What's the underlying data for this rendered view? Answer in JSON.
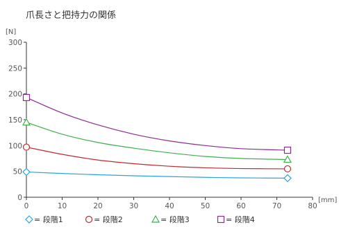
{
  "chart_data": {
    "type": "line",
    "title": "爪長さと把持力の関係",
    "ylabel": "[N]",
    "xlabel": "[mm]",
    "xlim": [
      0,
      80
    ],
    "ylim": [
      0,
      300
    ],
    "xticks": [
      0,
      10,
      20,
      30,
      40,
      50,
      60,
      70,
      80
    ],
    "yticks": [
      0,
      50,
      100,
      150,
      200,
      250,
      300
    ],
    "grid": false,
    "legend_position": "bottom",
    "series": [
      {
        "name": "段階1",
        "color": "#29a3e0",
        "marker": "diamond",
        "x": [
          0,
          10,
          20,
          30,
          40,
          50,
          60,
          73
        ],
        "y": [
          49,
          46,
          43.5,
          41.5,
          40,
          38.5,
          37.5,
          37
        ]
      },
      {
        "name": "段階2",
        "color": "#c1272d",
        "marker": "circle",
        "x": [
          0,
          10,
          20,
          30,
          40,
          50,
          60,
          73
        ],
        "y": [
          97,
          83,
          72,
          65,
          60,
          57,
          55.5,
          55
        ]
      },
      {
        "name": "段階3",
        "color": "#3db14a",
        "marker": "triangle",
        "x": [
          0,
          10,
          20,
          30,
          40,
          50,
          60,
          73
        ],
        "y": [
          145,
          122,
          106,
          95,
          86,
          79,
          75,
          73
        ]
      },
      {
        "name": "段階4",
        "color": "#8b2a8f",
        "marker": "square",
        "x": [
          0,
          10,
          20,
          30,
          40,
          50,
          60,
          73
        ],
        "y": [
          193,
          163,
          140,
          122,
          109,
          100,
          94,
          91
        ]
      }
    ]
  },
  "legend": {
    "prefix": "= ",
    "items": [
      "段階1",
      "段階2",
      "段階3",
      "段階4"
    ]
  }
}
